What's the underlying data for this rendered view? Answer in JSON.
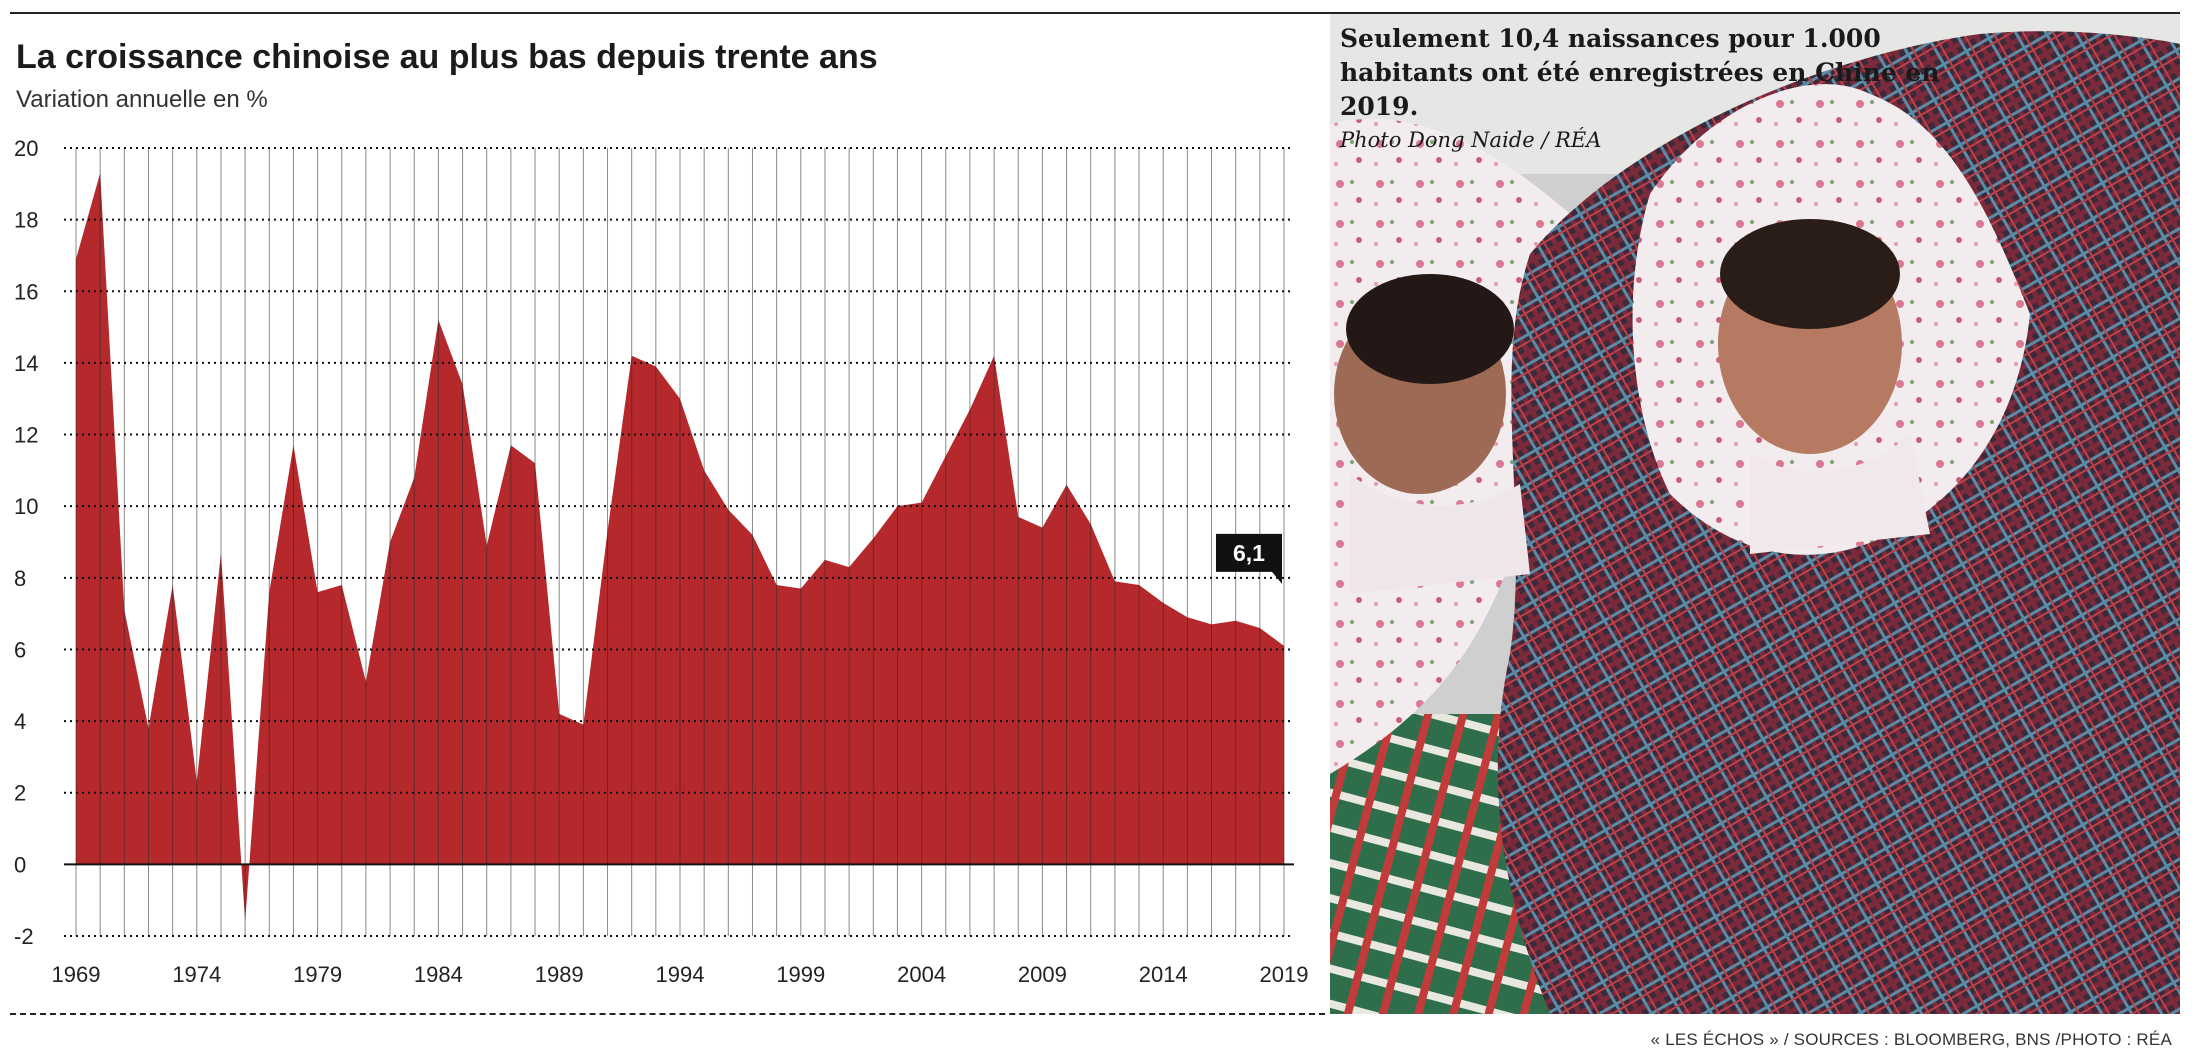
{
  "header": {
    "title": "La croissance chinoise au plus bas depuis trente ans",
    "subtitle": "Variation annuelle en %"
  },
  "chart_data": {
    "type": "area",
    "x": [
      1969,
      1970,
      1971,
      1972,
      1973,
      1974,
      1975,
      1976,
      1977,
      1978,
      1979,
      1980,
      1981,
      1982,
      1983,
      1984,
      1985,
      1986,
      1987,
      1988,
      1989,
      1990,
      1991,
      1992,
      1993,
      1994,
      1995,
      1996,
      1997,
      1998,
      1999,
      2000,
      2001,
      2002,
      2003,
      2004,
      2005,
      2006,
      2007,
      2008,
      2009,
      2010,
      2011,
      2012,
      2013,
      2014,
      2015,
      2016,
      2017,
      2018,
      2019
    ],
    "y": [
      16.9,
      19.3,
      7.1,
      3.8,
      7.8,
      2.3,
      8.7,
      -1.6,
      7.6,
      11.7,
      7.6,
      7.8,
      5.1,
      9.0,
      10.8,
      15.2,
      13.4,
      8.9,
      11.7,
      11.2,
      4.2,
      3.9,
      9.3,
      14.2,
      13.9,
      13.0,
      11.0,
      9.9,
      9.2,
      7.8,
      7.7,
      8.5,
      8.3,
      9.1,
      10.0,
      10.1,
      11.4,
      12.7,
      14.2,
      9.7,
      9.4,
      10.6,
      9.5,
      7.9,
      7.8,
      7.3,
      6.9,
      6.7,
      6.8,
      6.6,
      6.1
    ],
    "xticks": [
      "1969",
      "1974",
      "1979",
      "1984",
      "1989",
      "1994",
      "1999",
      "2004",
      "2009",
      "2014",
      "2019"
    ],
    "yticks": [
      "20",
      "18",
      "16",
      "14",
      "12",
      "10",
      "8",
      "6",
      "4",
      "2",
      "0",
      "-2"
    ],
    "ylim": [
      -2,
      20
    ],
    "xlim": [
      1969,
      2019
    ],
    "grid": true,
    "color": "#b5282b",
    "annotation": {
      "text": "6,1",
      "year": 2019,
      "value": 6.1
    }
  },
  "photo": {
    "caption": "Seulement 10,4 naissances pour 1.000 habitants ont été enregistrées en Chine en 2019.",
    "credit": "Photo Dong Naide / RÉA"
  },
  "footer": {
    "source": "« LES ÉCHOS » / SOURCES : BLOOMBERG, BNS /PHOTO : RÉA"
  }
}
